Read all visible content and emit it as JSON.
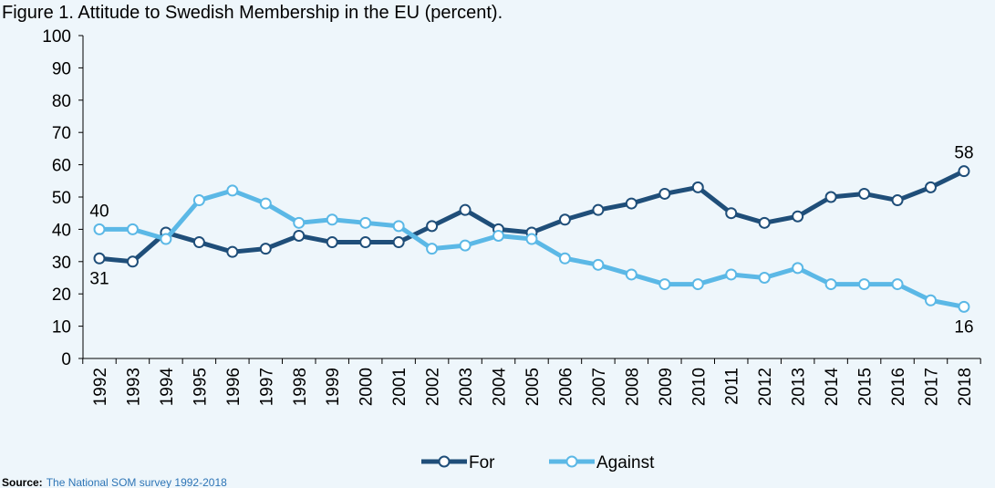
{
  "chart_data": {
    "type": "line",
    "title": "Figure 1. Attitude to Swedish Membership in the EU (percent).",
    "source_label": "Source:",
    "source_text": "The National SOM survey 1992-2018",
    "categories": [
      "1992",
      "1993",
      "1994",
      "1995",
      "1996",
      "1997",
      "1998",
      "1999",
      "2000",
      "2001",
      "2002",
      "2003",
      "2004",
      "2005",
      "2006",
      "2007",
      "2008",
      "2009",
      "2010",
      "2011",
      "2012",
      "2013",
      "2014",
      "2015",
      "2016",
      "2017",
      "2018"
    ],
    "series": [
      {
        "name": "For",
        "color": "#1f4e79",
        "values": [
          31,
          30,
          39,
          36,
          33,
          34,
          38,
          36,
          36,
          36,
          41,
          46,
          40,
          39,
          43,
          46,
          48,
          51,
          53,
          45,
          42,
          44,
          50,
          51,
          49,
          53,
          58
        ]
      },
      {
        "name": "Against",
        "color": "#5bb8e6",
        "values": [
          40,
          40,
          37,
          49,
          52,
          48,
          42,
          43,
          42,
          41,
          34,
          35,
          38,
          37,
          31,
          29,
          26,
          23,
          23,
          26,
          25,
          28,
          23,
          23,
          23,
          18,
          16
        ]
      }
    ],
    "labeled_points": [
      0,
      26
    ],
    "ylim": [
      0,
      100
    ],
    "yticks": [
      0,
      10,
      20,
      30,
      40,
      50,
      60,
      70,
      80,
      90,
      100
    ],
    "legend": "bottom"
  }
}
